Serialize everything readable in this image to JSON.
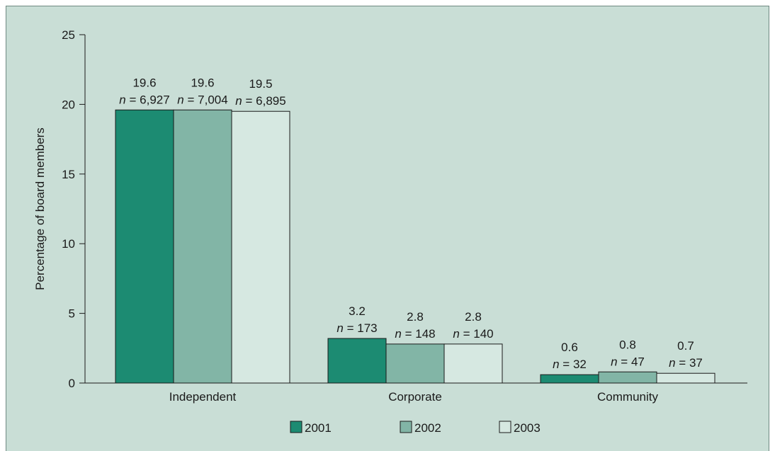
{
  "chart_data": {
    "type": "bar",
    "title": "",
    "xlabel": "",
    "ylabel": "Percentage of board members",
    "ylim": [
      0,
      25
    ],
    "yticks": [
      0,
      5,
      10,
      15,
      20,
      25
    ],
    "categories": [
      "Independent",
      "Corporate",
      "Community"
    ],
    "series": [
      {
        "name": "2001",
        "color": "#1c8b72",
        "values": [
          19.6,
          3.2,
          0.6
        ],
        "n": [
          "6,927",
          "173",
          "32"
        ]
      },
      {
        "name": "2002",
        "color": "#82b5a6",
        "values": [
          19.6,
          2.8,
          0.8
        ],
        "n": [
          "7,004",
          "148",
          "47"
        ]
      },
      {
        "name": "2003",
        "color": "#d6e8e1",
        "values": [
          19.5,
          2.8,
          0.7
        ],
        "n": [
          "6,895",
          "140",
          "37"
        ]
      }
    ],
    "n_prefix": "n",
    "n_separator": " = ",
    "legend_position": "bottom",
    "grid": false
  },
  "colors": {
    "panel_background": "#c9ded6",
    "bar_stroke": "#1a1a1a"
  }
}
